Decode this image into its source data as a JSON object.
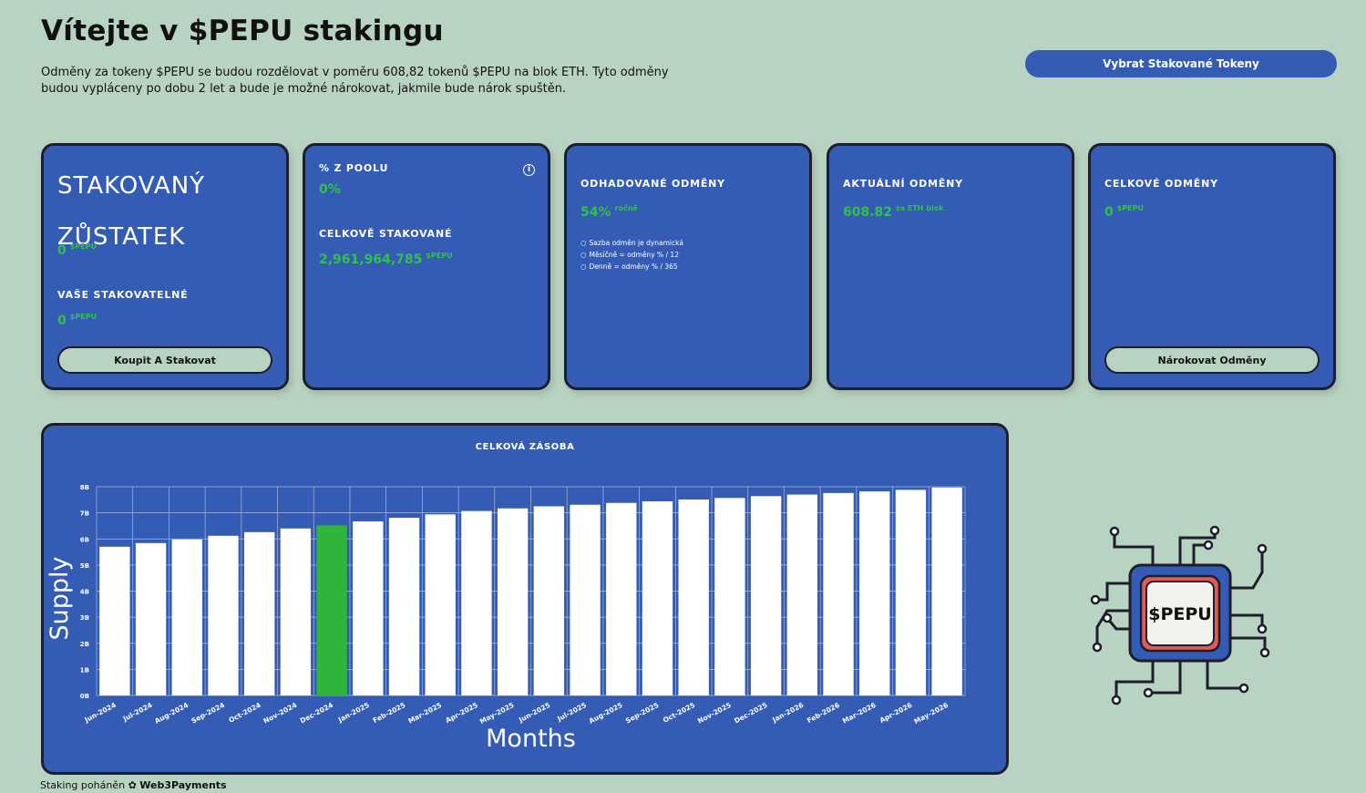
{
  "header": {
    "title": "Vítejte v $PEPU stakingu",
    "intro": "Odměny za tokeny $PEPU se budou rozdělovat v poměru 608,82 tokenů $PEPU na blok ETH. Tyto odměny budou vypláceny po dobu 2 let a bude je možné nárokovat, jakmile bude nárok spuštěn.",
    "withdraw_label": "Vybrat Stakované Tokeny"
  },
  "cards": {
    "balance": {
      "title": "STAKOVANÝ ZŮSTATEK",
      "value": "0",
      "unit": "$PEPU",
      "stakeable_label": "VAŠE STAKOVATELNÉ",
      "stakeable_value": "0",
      "stakeable_unit": "$PEPU",
      "button": "Koupit A Stakovat"
    },
    "pool": {
      "pool_label": "% Z POOLU",
      "pool_value": "0%",
      "total_label": "CELKOVĚ STAKOVANÉ",
      "total_value": "2,961,964,785",
      "total_unit": "$PEPU"
    },
    "estimated": {
      "label": "ODHADOVANÉ ODMĚNY",
      "value": "54%",
      "unit": "ročně",
      "notes": [
        "Sazba odměn je dynamická",
        "Měsíčně = odměny % / 12",
        "Denně = odměny % / 365"
      ]
    },
    "current": {
      "label": "AKTUÁLNÍ ODMĚNY",
      "value": "608.82",
      "unit": "za ETH blok"
    },
    "total": {
      "label": "CELKOVÉ ODMĚNY",
      "value": "0",
      "unit": "$PEPU",
      "button": "Nárokovat Odměny"
    }
  },
  "chart_data": {
    "type": "bar",
    "title": "CELKOVÁ ZÁSOBA",
    "xlabel": "Months",
    "ylabel": "Supply",
    "categories": [
      "Jun-2024",
      "Jul-2024",
      "Aug-2024",
      "Sep-2024",
      "Oct-2024",
      "Nov-2024",
      "Dec-2024",
      "Jan-2025",
      "Feb-2025",
      "Mar-2025",
      "Apr-2025",
      "May-2025",
      "Jun-2025",
      "Jul-2025",
      "Aug-2025",
      "Sep-2025",
      "Oct-2025",
      "Nov-2025",
      "Dec-2025",
      "Jan-2026",
      "Feb-2026",
      "Mar-2026",
      "Apr-2026",
      "May-2026"
    ],
    "values": [
      5.7,
      5.84,
      5.98,
      6.12,
      6.26,
      6.4,
      6.52,
      6.67,
      6.81,
      6.94,
      7.07,
      7.17,
      7.25,
      7.31,
      7.38,
      7.44,
      7.51,
      7.57,
      7.64,
      7.7,
      7.76,
      7.82,
      7.88,
      7.97
    ],
    "yticks": [
      "0B",
      "1B",
      "2B",
      "3B",
      "4B",
      "5B",
      "6B",
      "7B",
      "8B"
    ],
    "ylim": [
      0,
      8
    ],
    "highlight_index": 6,
    "grid": true,
    "colors": {
      "bar": "#ffffff",
      "highlight": "#2fb53c",
      "panel": "#345cb4"
    }
  },
  "logo": {
    "text": "$PEPU"
  },
  "footer": {
    "prefix": "Staking poháněn",
    "brand": "Web3Payments"
  }
}
